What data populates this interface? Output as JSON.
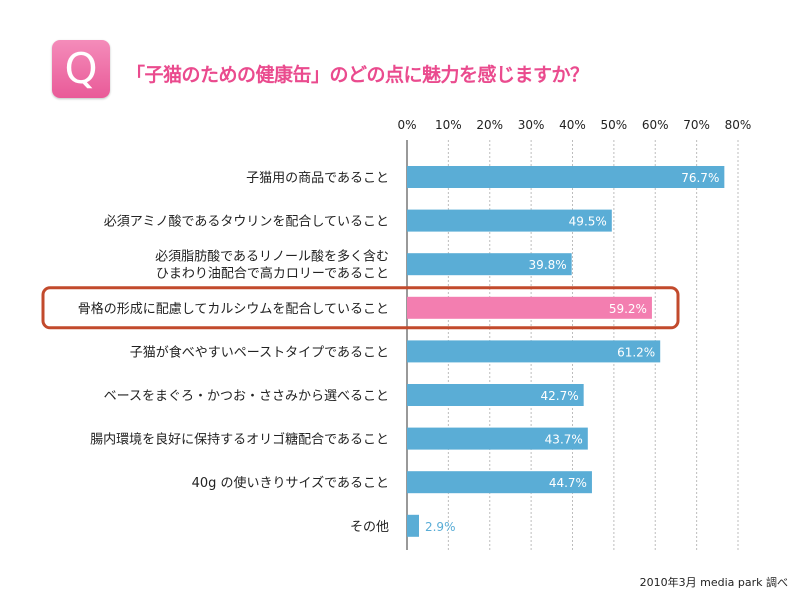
{
  "header": {
    "icon_letter": "Q",
    "title": "「子猫のための健康缶」のどの点に魅力を感じますか？"
  },
  "source_note": "2010年3月 media park 調べ",
  "colors": {
    "bar": "#5aadd6",
    "highlight_bar": "#f37eb0",
    "highlight_border": "#c24a2c",
    "grid": "#bdbdbd",
    "title": "#ea4b8e",
    "icon": "#ec6aa2"
  },
  "chart_data": {
    "type": "bar",
    "orientation": "horizontal",
    "xlim": [
      0,
      80
    ],
    "x_ticks": [
      "0%",
      "10%",
      "20%",
      "30%",
      "40%",
      "50%",
      "60%",
      "70%",
      "80%"
    ],
    "grid": true,
    "categories": [
      "子猫用の商品であること",
      "必須アミノ酸であるタウリンを配合していること",
      "必須脂肪酸であるリノール酸を多く含む\nひまわり油配合で高カロリーであること",
      "骨格の形成に配慮してカルシウムを配合していること",
      "子猫が食べやすいペーストタイプであること",
      "ベースをまぐろ・かつお・ささみから選べること",
      "腸内環境を良好に保持するオリゴ糖配合であること",
      "40g の使いきりサイズであること",
      "その他"
    ],
    "values": [
      76.7,
      49.5,
      39.8,
      59.2,
      61.2,
      42.7,
      43.7,
      44.7,
      2.9
    ],
    "value_labels": [
      "76.7%",
      "49.5%",
      "39.8%",
      "59.2%",
      "61.2%",
      "42.7%",
      "43.7%",
      "44.7%",
      "2.9%"
    ],
    "highlight_index": 3
  }
}
